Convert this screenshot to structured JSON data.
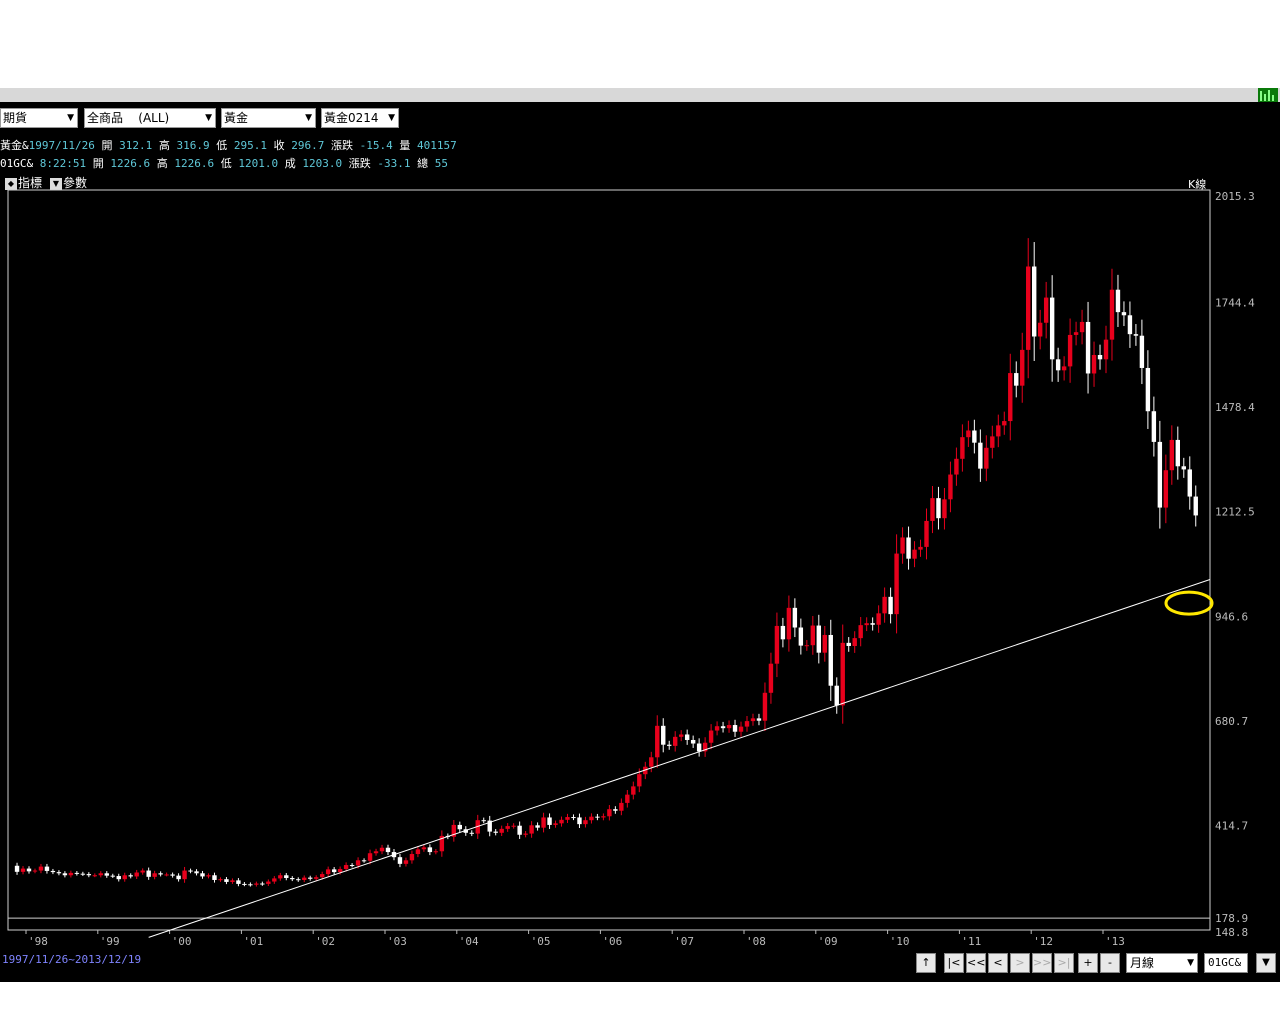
{
  "toolbar": {
    "selects": [
      {
        "value": "期貨"
      },
      {
        "value": "全商品    (ALL)"
      },
      {
        "value": "黃金"
      },
      {
        "value": "黃金0214"
      }
    ]
  },
  "info": {
    "line1": {
      "name": "黃金&",
      "date": "1997/11/26",
      "open_label": "開",
      "open": "312.1",
      "high_label": "高",
      "high": "316.9",
      "low_label": "低",
      "low": "295.1",
      "close_label": "收",
      "close": "296.7",
      "change_label": "漲跌",
      "change": "-15.4",
      "volume_label": "量",
      "volume": "401157"
    },
    "line2": {
      "name": "01GC&",
      "time": "8:22:51",
      "open_label": "開",
      "open": "1226.6",
      "high_label": "高",
      "high": "1226.6",
      "low_label": "低",
      "low": "1201.0",
      "trade_label": "成",
      "trade": "1203.0",
      "change_label": "漲跌",
      "change": "-33.1",
      "total_label": "總",
      "total": "55"
    }
  },
  "chart_tools": {
    "indicator_label": "指標",
    "param_label": "參數",
    "kline_label": "K線"
  },
  "chart_data": {
    "type": "candlestick",
    "title": "",
    "ylim": [
      148.8,
      2015.3
    ],
    "yticks": [
      "2015.3",
      "1744.4",
      "1478.4",
      "1212.5",
      "946.6",
      "680.7",
      "414.7",
      "178.9",
      "148.8"
    ],
    "yticks_values": [
      2015.3,
      1744.4,
      1478.4,
      1212.5,
      946.6,
      680.7,
      414.7,
      178.9,
      148.8
    ],
    "xticks": [
      "'98",
      "'99",
      "'00",
      "'01",
      "'02",
      "'03",
      "'04",
      "'05",
      "'06",
      "'07",
      "'08",
      "'09",
      "'10",
      "'11",
      "'12",
      "'13"
    ],
    "start": "1997-11",
    "monthly_close": [
      296.7,
      305,
      298,
      300,
      310,
      299,
      296,
      293,
      288,
      294,
      292,
      291,
      288,
      288,
      293,
      287,
      286,
      278,
      288,
      285,
      295,
      300,
      284,
      293,
      290,
      290,
      287,
      278,
      300,
      298,
      293,
      285,
      288,
      276,
      278,
      271,
      275,
      266,
      265,
      264,
      267,
      266,
      272,
      280,
      288,
      281,
      278,
      276,
      282,
      279,
      283,
      291,
      303,
      296,
      304,
      314,
      313,
      326,
      325,
      344,
      349,
      358,
      347,
      334,
      317,
      326,
      342,
      354,
      359,
      347,
      349,
      388,
      386,
      416,
      405,
      396,
      394,
      428,
      427,
      399,
      396,
      406,
      413,
      414,
      391,
      394,
      415,
      409,
      435,
      416,
      420,
      429,
      436,
      435,
      418,
      428,
      437,
      435,
      438,
      456,
      452,
      472,
      493,
      514,
      545,
      564,
      588,
      668,
      620,
      617,
      640,
      646,
      632,
      623,
      603,
      625,
      656,
      667,
      662,
      670,
      653,
      666,
      680,
      687,
      681,
      752,
      826,
      922,
      888,
      968,
      918,
      872,
      873,
      923,
      854,
      899,
      770,
      720,
      879,
      871,
      891,
      924,
      929,
      925,
      954,
      996,
      952,
      1106,
      1147,
      1093,
      1116,
      1123,
      1189,
      1247,
      1196,
      1244,
      1307,
      1347,
      1402,
      1419,
      1388,
      1322,
      1375,
      1404,
      1432,
      1443,
      1565,
      1533,
      1624,
      1836,
      1658,
      1693,
      1757,
      1600,
      1572,
      1582,
      1662,
      1669,
      1695,
      1564,
      1611,
      1600,
      1650,
      1777,
      1720,
      1712,
      1664,
      1660,
      1578,
      1468,
      1390,
      1223,
      1318,
      1395,
      1328,
      1320,
      1251,
      1203
    ],
    "trendline": {
      "start": "1999-09",
      "start_value": 130,
      "end": "2013-12",
      "end_value": 1040
    },
    "annotation": {
      "type": "ellipse",
      "color": "#ffe800",
      "near_value": 980
    },
    "series_colors": {
      "up": "#e8001c",
      "down": "#ffffff"
    }
  },
  "footer": {
    "date_range": "1997/11/26~2013/12/19",
    "nav_buttons": [
      "↑",
      "|<",
      "<<",
      "<",
      ">",
      ">>",
      ">|",
      "+",
      "-"
    ],
    "period_select": "月線",
    "symbol_box": "01GC&"
  }
}
